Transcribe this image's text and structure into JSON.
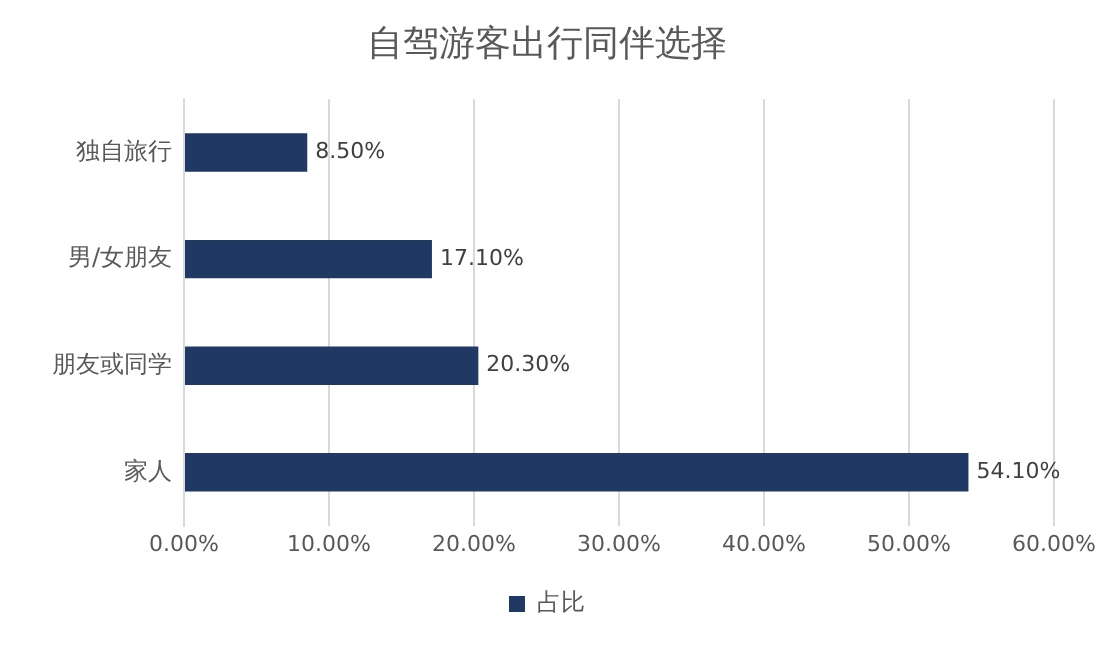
{
  "chart_data": {
    "type": "bar",
    "orientation": "horizontal",
    "title": "自驾游客出行同伴选择",
    "categories": [
      "独自旅行",
      "男/女朋友",
      "朋友或同学",
      "家人"
    ],
    "series": [
      {
        "name": "占比",
        "color": "#203864",
        "values": [
          8.5,
          17.1,
          20.3,
          54.1
        ],
        "value_labels": [
          "8.50%",
          "17.10%",
          "20.30%",
          "54.10%"
        ]
      }
    ],
    "xlim": [
      0,
      60
    ],
    "xticks": [
      {
        "value": 0,
        "label": "0.00%"
      },
      {
        "value": 10,
        "label": "10.00%"
      },
      {
        "value": 20,
        "label": "20.00%"
      },
      {
        "value": 30,
        "label": "30.00%"
      },
      {
        "value": 40,
        "label": "40.00%"
      },
      {
        "value": 50,
        "label": "50.00%"
      },
      {
        "value": 60,
        "label": "60.00%"
      }
    ],
    "grid": "x",
    "legend": "bottom"
  }
}
